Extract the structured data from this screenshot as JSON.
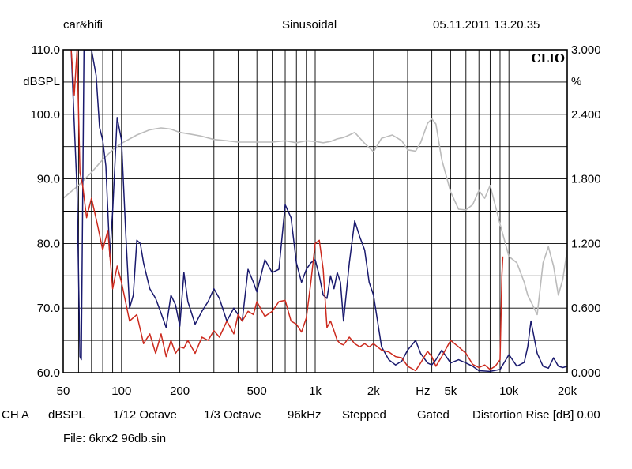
{
  "header": {
    "left": "car&hifi",
    "center": "Sinusoidal",
    "right": "05.11.2011 13.20.35"
  },
  "footer": {
    "settings": [
      "CH A",
      "dBSPL",
      "1/12 Octave",
      "1/3 Octave",
      "96kHz",
      "Stepped",
      "Gated",
      "Distortion Rise [dB] 0.00"
    ],
    "file": "File: 6krx2 96db.sin"
  },
  "chart_data": {
    "type": "line",
    "brand": "CLIO",
    "xscale": "log",
    "xlim": [
      50,
      20000
    ],
    "x_tick_values": [
      50,
      100,
      200,
      500,
      1000,
      2000,
      5000,
      10000,
      20000
    ],
    "x_tick_labels": [
      "50",
      "100",
      "200",
      "500",
      "1k",
      "2k",
      "5k",
      "10k",
      "20k"
    ],
    "x_unit_label": "Hz",
    "ylabel": "dBSPL",
    "ylim": [
      60,
      110
    ],
    "y_tick_values": [
      60,
      70,
      80,
      90,
      100,
      110
    ],
    "y_tick_labels": [
      "60.0",
      "70.0",
      "80.0",
      "90.0",
      "100.0",
      "110.0"
    ],
    "y2label": "%",
    "y2lim": [
      0,
      3
    ],
    "y2_tick_labels": [
      "0.000",
      "0.600",
      "1.200",
      "1.800",
      "2.400",
      "3.000"
    ],
    "grid": true,
    "colors": {
      "frame": "#000000",
      "grid": "#000000",
      "series_blue": "#1a1a6e",
      "series_red": "#cc2a1e",
      "series_gray": "#bbbbbb"
    },
    "series": [
      {
        "color": "#bbbbbb",
        "axis": "left",
        "x": [
          50,
          60,
          70,
          80,
          90,
          100,
          120,
          140,
          160,
          180,
          200,
          230,
          260,
          300,
          350,
          400,
          500,
          600,
          700,
          800,
          900,
          1000,
          1100,
          1200,
          1300,
          1400,
          1500,
          1600,
          1800,
          2000,
          2200,
          2500,
          2800,
          3000,
          3300,
          3500,
          3800,
          4000,
          4200,
          4500,
          5000,
          5500,
          6000,
          6500,
          7000,
          7500,
          8000,
          9000,
          10000,
          11000,
          12000,
          12500,
          13000,
          14000,
          15000,
          16000,
          17000,
          18000,
          19000,
          20000
        ],
        "y": [
          87,
          89,
          91,
          93,
          94.5,
          95.5,
          96.8,
          97.6,
          97.9,
          97.7,
          97.2,
          96.9,
          96.6,
          96.1,
          95.9,
          95.7,
          95.7,
          95.7,
          95.9,
          95.6,
          95.9,
          95.8,
          95.6,
          95.8,
          96.2,
          96.4,
          96.8,
          97.2,
          95.5,
          94.2,
          96.3,
          96.8,
          95.9,
          94.5,
          94.3,
          95.6,
          98.6,
          99.3,
          98.5,
          93,
          88,
          85.3,
          85.2,
          86,
          88.2,
          87,
          89,
          83,
          78,
          77,
          74,
          72,
          71,
          69,
          77,
          79.5,
          76.5,
          72,
          74.5,
          79
        ]
      },
      {
        "color": "#1a1a6e",
        "axis": "left",
        "x": [
          55,
          59,
          61,
          62,
          64,
          67,
          70,
          74,
          77,
          80,
          83,
          87,
          90,
          95,
          100,
          105,
          110,
          115,
          120,
          125,
          130,
          140,
          150,
          160,
          170,
          180,
          190,
          200,
          210,
          220,
          240,
          260,
          280,
          300,
          320,
          350,
          380,
          420,
          450,
          480,
          500,
          550,
          600,
          650,
          700,
          750,
          800,
          850,
          900,
          950,
          1000,
          1050,
          1100,
          1150,
          1200,
          1250,
          1300,
          1350,
          1400,
          1500,
          1600,
          1700,
          1800,
          1900,
          2000,
          2200,
          2400,
          2600,
          2800,
          3000,
          3300,
          3500,
          3800,
          4000,
          4200,
          4500,
          5000,
          5500,
          6000,
          6500,
          7000,
          8000,
          9000,
          10000,
          11000,
          12000,
          12500,
          13000,
          14000,
          15000,
          16000,
          17000,
          18000,
          19000,
          20000
        ],
        "y": [
          110,
          88,
          62.5,
          62,
          110,
          110,
          110,
          106,
          98,
          96,
          92,
          78,
          85,
          99.5,
          96,
          82,
          70,
          72,
          80.5,
          80,
          77,
          73,
          71.5,
          69.2,
          67,
          72,
          70.5,
          67.2,
          75.5,
          71,
          67.5,
          69.5,
          71,
          73,
          71.5,
          68,
          70,
          68,
          76,
          74,
          72.5,
          77.5,
          75.5,
          76,
          86,
          84,
          77,
          74,
          76,
          77,
          77.5,
          75,
          72,
          71.5,
          75,
          73,
          75.5,
          74,
          68,
          77,
          83.5,
          81,
          79,
          74,
          72,
          64,
          62,
          61.2,
          61.8,
          63.5,
          65,
          63,
          61.5,
          61.2,
          62,
          63.5,
          61.5,
          62,
          61.5,
          61,
          60.3,
          60.2,
          60.5,
          62.8,
          61,
          61.6,
          64,
          68,
          63,
          61,
          60.7,
          62.3,
          61,
          60.8,
          61
        ]
      },
      {
        "color": "#cc2a1e",
        "axis": "left",
        "x": [
          55,
          57,
          59,
          61,
          63,
          66,
          70,
          75,
          80,
          85,
          90,
          95,
          100,
          110,
          120,
          130,
          140,
          150,
          160,
          170,
          180,
          190,
          200,
          210,
          220,
          240,
          260,
          280,
          300,
          320,
          350,
          380,
          400,
          420,
          450,
          480,
          500,
          550,
          600,
          650,
          700,
          750,
          800,
          850,
          900,
          950,
          1000,
          1050,
          1100,
          1150,
          1200,
          1250,
          1300,
          1350,
          1400,
          1500,
          1600,
          1700,
          1800,
          1900,
          2000,
          2200,
          2400,
          2600,
          2800,
          3000,
          3300,
          3500,
          3800,
          4000,
          4200,
          4500,
          5000,
          5500,
          6000,
          6500,
          7000,
          7500,
          8000,
          8500,
          9000,
          9200,
          9300
        ],
        "y": [
          110,
          103,
          110,
          91,
          89,
          84,
          87,
          83,
          79,
          82,
          73,
          76.5,
          74,
          68,
          69,
          64.5,
          66,
          63,
          66,
          62.5,
          65,
          63,
          64,
          63.8,
          65,
          63,
          65.5,
          65,
          66.5,
          65.5,
          68,
          66,
          69,
          68,
          69.5,
          69,
          71,
          68.7,
          69.5,
          71,
          71.2,
          68,
          67.5,
          66.3,
          68.5,
          74,
          80,
          80.5,
          76,
          67,
          68,
          66.5,
          65,
          64.5,
          64.3,
          65.5,
          64.5,
          64,
          64.5,
          64,
          64.5,
          63.5,
          63.2,
          62.5,
          62.3,
          61,
          60.3,
          61.5,
          63.3,
          62.5,
          61,
          62.5,
          65,
          64,
          63,
          61.3,
          60.8,
          61.2,
          60.5,
          61,
          62,
          75,
          78
        ]
      }
    ]
  }
}
